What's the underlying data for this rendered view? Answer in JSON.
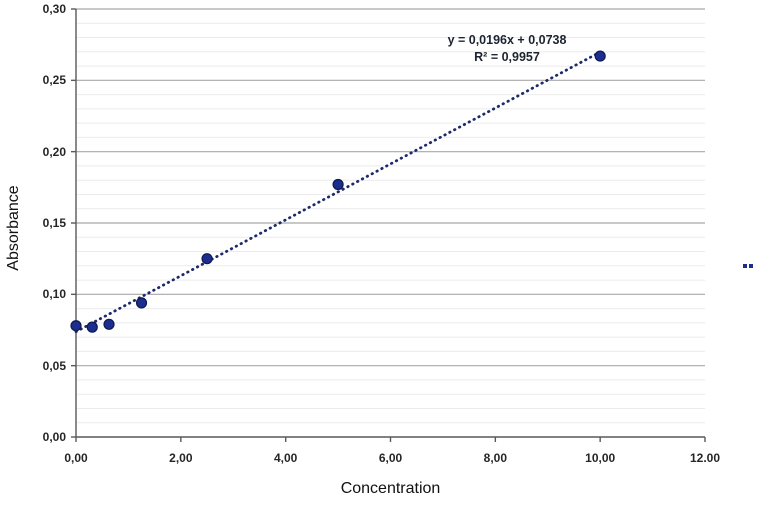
{
  "chart_data": {
    "type": "scatter",
    "title": "",
    "xlabel": "Concentration",
    "ylabel": "Absorbance",
    "xlim": [
      0,
      12
    ],
    "ylim": [
      0,
      0.3
    ],
    "grid": {
      "y_minor_step": 0.01,
      "y_major_step": 0.05,
      "vertical_gridlines": false
    },
    "legend": "none",
    "x_ticks": [
      {
        "v": 0,
        "label": "0,00"
      },
      {
        "v": 2,
        "label": "2,00"
      },
      {
        "v": 4,
        "label": "4,00"
      },
      {
        "v": 6,
        "label": "6,00"
      },
      {
        "v": 8,
        "label": "8,00"
      },
      {
        "v": 10,
        "label": "10,00"
      },
      {
        "v": 12,
        "label": "12.00"
      }
    ],
    "y_ticks": [
      {
        "v": 0.0,
        "label": "0,00"
      },
      {
        "v": 0.05,
        "label": "0,05"
      },
      {
        "v": 0.1,
        "label": "0,10"
      },
      {
        "v": 0.15,
        "label": "0,15"
      },
      {
        "v": 0.2,
        "label": "0,20"
      },
      {
        "v": 0.25,
        "label": "0,25"
      },
      {
        "v": 0.3,
        "label": "0,30"
      }
    ],
    "points": [
      {
        "x": 0,
        "y": 0.078
      },
      {
        "x": 0.31,
        "y": 0.077
      },
      {
        "x": 0.63,
        "y": 0.079
      },
      {
        "x": 1.25,
        "y": 0.094
      },
      {
        "x": 2.5,
        "y": 0.125
      },
      {
        "x": 5,
        "y": 0.177
      },
      {
        "x": 10,
        "y": 0.267
      }
    ],
    "trendline": {
      "slope": 0.0196,
      "intercept": 0.0738,
      "x_start": 0,
      "x_end": 10,
      "style": "dotted"
    },
    "annotation": {
      "equation": "y = 0,0196x + 0,0738",
      "r_squared": "R² = 0,9957"
    },
    "colors": {
      "point_fill": "#1b2d8e",
      "point_edge": "#0e1a4f",
      "trendline": "#1c2a6b",
      "major_grid": "#a8a8a8",
      "minor_grid": "#ebebed",
      "axis": "#595959",
      "text": "#262626"
    },
    "stray_marks": {
      "count": 2,
      "color": "#1b2d8e"
    }
  }
}
